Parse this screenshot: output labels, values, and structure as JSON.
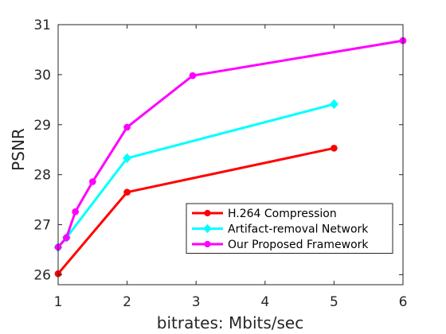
{
  "chart_data": {
    "type": "line",
    "xlabel": "bitrates: Mbits/sec",
    "ylabel": "PSNR",
    "xlim": [
      1,
      6
    ],
    "ylim": [
      25.8,
      31
    ],
    "xticks": [
      1,
      2,
      3,
      4,
      5,
      6
    ],
    "yticks": [
      26,
      27,
      28,
      29,
      30,
      31
    ],
    "grid": false,
    "legend_position": "bottom-right",
    "series": [
      {
        "name": "H.264 Compression",
        "color": "#ff0000",
        "marker": "circle",
        "x": [
          1.0,
          2.0,
          5.0
        ],
        "y": [
          26.02,
          27.65,
          28.53
        ]
      },
      {
        "name": "Artifact-removal Network",
        "color": "#00ffff",
        "marker": "diamond",
        "x": [
          1.0,
          1.12,
          2.0,
          5.0
        ],
        "y": [
          26.55,
          26.74,
          28.33,
          29.41
        ]
      },
      {
        "name": "Our Proposed Framework",
        "color": "#ff00ff",
        "marker": "circle",
        "x": [
          1.0,
          1.12,
          1.25,
          1.5,
          2.0,
          2.95,
          6.0
        ],
        "y": [
          26.55,
          26.74,
          27.26,
          27.86,
          28.95,
          29.98,
          30.68
        ]
      }
    ]
  }
}
